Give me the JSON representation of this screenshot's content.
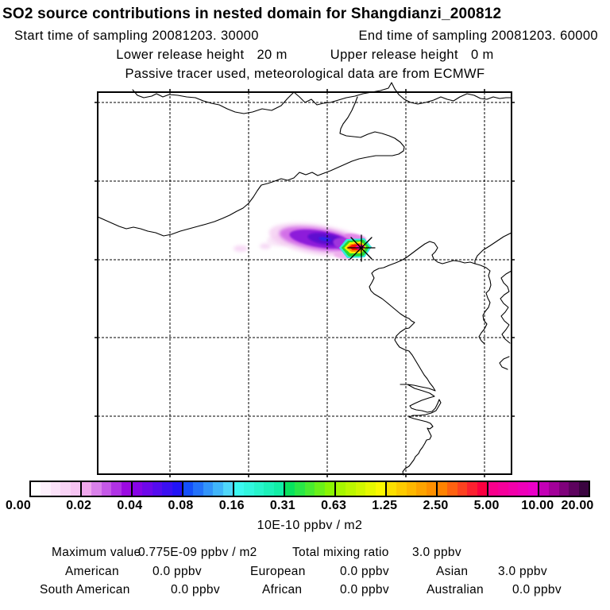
{
  "header": {
    "title": "SO2 source contributions in nested domain for Shangdianzi_200812",
    "start_label": "Start time of sampling",
    "start_value": "20081203. 30000",
    "end_label": "End time of sampling",
    "end_value": "20081203. 60000",
    "lower_label": "Lower release height",
    "lower_value": "20 m",
    "upper_label": "Upper release height",
    "upper_value": "0 m",
    "tracer_note": "Passive tracer used, meteorological data are from ECMWF"
  },
  "colorbar": {
    "unit": "10E-10 ppbv / m2",
    "ticks": [
      "0.00",
      "0.02",
      "0.04",
      "0.08",
      "0.16",
      "0.31",
      "0.63",
      "1.25",
      "2.50",
      "5.00",
      "10.00",
      "20.00"
    ],
    "segments": [
      {
        "from": "#ffffff",
        "to": "#f6c4f2"
      },
      {
        "from": "#efa8ec",
        "to": "#9b0ae2"
      },
      {
        "from": "#8704e6",
        "to": "#2214f6"
      },
      {
        "from": "#1450fa",
        "to": "#4fd7fa"
      },
      {
        "from": "#3bf8f0",
        "to": "#12efa6"
      },
      {
        "from": "#08e25e",
        "to": "#8af402"
      },
      {
        "from": "#a6f600",
        "to": "#fcf800"
      },
      {
        "from": "#fcdf00",
        "to": "#ff9000"
      },
      {
        "from": "#ff8300",
        "to": "#fb0040"
      },
      {
        "from": "#f9008c",
        "to": "#ea00c8"
      },
      {
        "from": "#c400b6",
        "to": "#3a0440"
      }
    ]
  },
  "stats": {
    "max_label": "Maximum value",
    "max_value": "0.775E-09 ppbv / m2",
    "total_label": "Total mixing ratio",
    "total_value": "3.0 ppbv",
    "contributions": [
      {
        "label": "American",
        "value": "0.0 ppbv"
      },
      {
        "label": "European",
        "value": "0.0 ppbv"
      },
      {
        "label": "Asian",
        "value": "3.0 ppbv"
      },
      {
        "label": "South American",
        "value": "0.0 ppbv"
      },
      {
        "label": "African",
        "value": "0.0 ppbv"
      },
      {
        "label": "Australian",
        "value": "0.0 ppbv"
      }
    ]
  },
  "chart_data": {
    "type": "heatmap",
    "title": "SO2 source contributions in nested domain for Shangdianzi_200812",
    "subtitle": [
      "Start time of sampling 20081203. 30000  End time of sampling 20081203. 60000",
      "Lower release height 20 m  Upper release height 0 m",
      "Passive tracer used, meteorological data are from ECMWF"
    ],
    "colorbar_levels": [
      0.0,
      0.02,
      0.04,
      0.08,
      0.16,
      0.31,
      0.63,
      1.25,
      2.5,
      5.0,
      10.0,
      20.0
    ],
    "colorbar_unit": "10E-10 ppbv / m2",
    "maximum_value": "0.775E-09 ppbv / m2",
    "total_mixing_ratio_ppbv": 3.0,
    "contributions_ppbv": {
      "American": 0.0,
      "European": 0.0,
      "Asian": 3.0,
      "South American": 0.0,
      "African": 0.0,
      "Australian": 0.0
    },
    "layout": {
      "axis_tick_labels": "none",
      "grid": "dashed 5x5 lat-lon lines",
      "legend_position": "bottom colorbar"
    },
    "plume_description": "Footprint plume extends west from the receptor marker (asterisk); peak bin 5.00-10.00 (pink) at source surrounded by red/orange/yellow/green/cyan rings, violet-purple tail with blue core and faint pink patches further west"
  }
}
